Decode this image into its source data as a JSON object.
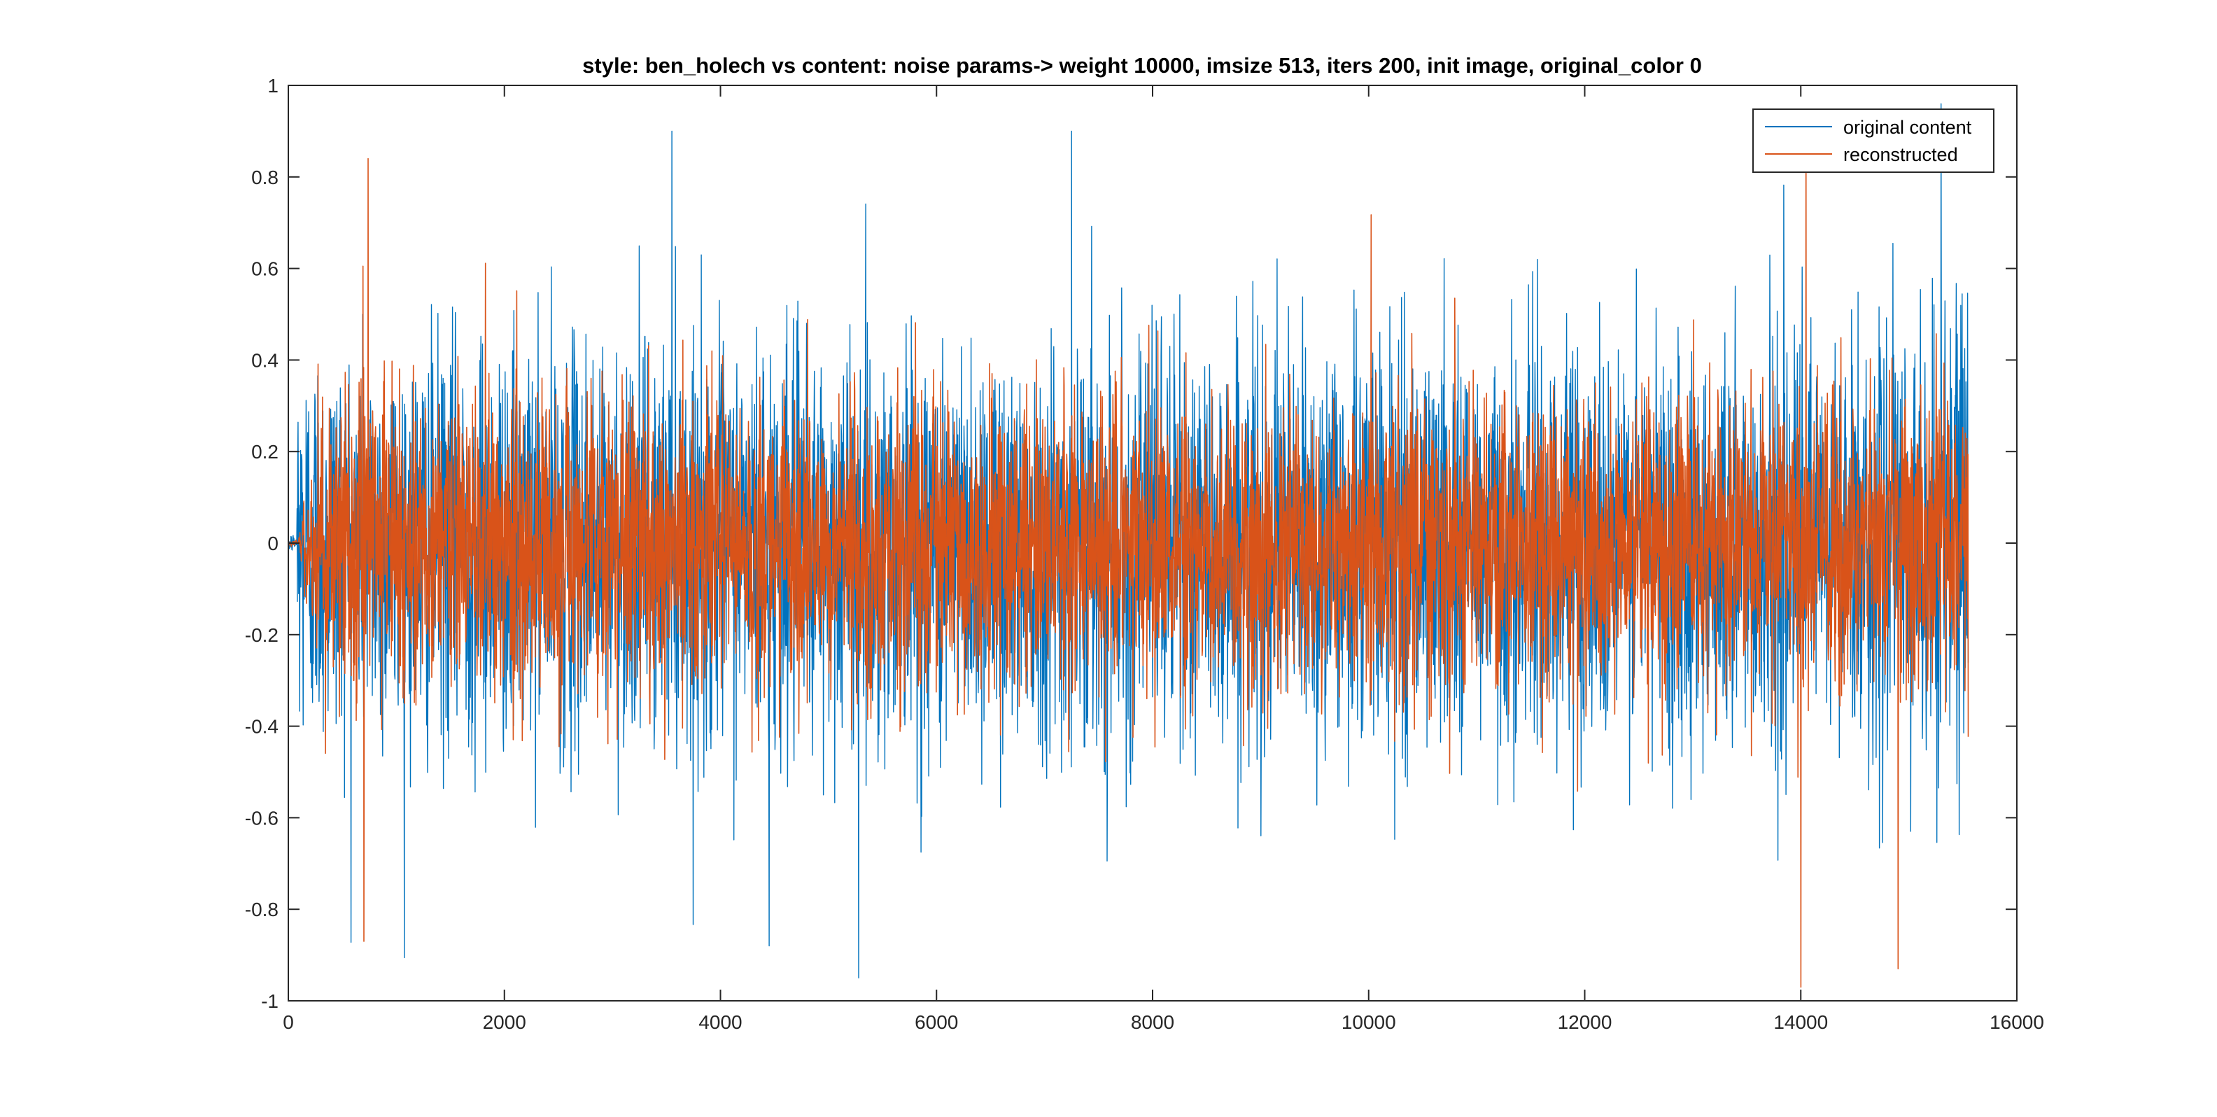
{
  "chart_data": {
    "type": "line",
    "title": "style: ben_holech vs content: noise  params-> weight 10000, imsize 513, iters 200, init image, original_color 0",
    "xlabel": "",
    "ylabel": "",
    "xlim": [
      0,
      16000
    ],
    "ylim": [
      -1,
      1
    ],
    "xticks": [
      0,
      2000,
      4000,
      6000,
      8000,
      10000,
      12000,
      14000,
      16000
    ],
    "xtick_labels": [
      "0",
      "2000",
      "4000",
      "6000",
      "8000",
      "10000",
      "12000",
      "14000",
      "16000"
    ],
    "yticks": [
      -1,
      -0.8,
      -0.6,
      -0.4,
      -0.2,
      0,
      0.2,
      0.4,
      0.6,
      0.8,
      1
    ],
    "ytick_labels": [
      "-1",
      "-0.8",
      "-0.6",
      "-0.4",
      "-0.2",
      "0",
      "0.2",
      "0.4",
      "0.6",
      "0.8",
      "1"
    ],
    "grid": false,
    "legend_position": "top-right",
    "x_range_of_data": [
      0,
      15550
    ],
    "series": [
      {
        "name": "original content",
        "color": "#0072BD",
        "signal": "noise",
        "max": 0.96,
        "min": -0.95,
        "typical_envelope": 0.6,
        "peaks": [
          {
            "x": 3550,
            "y": 0.9
          },
          {
            "x": 7250,
            "y": 0.9
          },
          {
            "x": 15300,
            "y": 0.96
          },
          {
            "x": 5280,
            "y": -0.95
          },
          {
            "x": 4450,
            "y": -0.88
          }
        ]
      },
      {
        "name": "reconstructed",
        "color": "#D95319",
        "signal": "noise",
        "max": 0.93,
        "min": -0.97,
        "typical_envelope": 0.45,
        "peaks": [
          {
            "x": 14050,
            "y": 0.93
          },
          {
            "x": 740,
            "y": 0.84
          },
          {
            "x": 14000,
            "y": -0.97
          },
          {
            "x": 14900,
            "y": -0.93
          },
          {
            "x": 700,
            "y": -0.87
          }
        ]
      }
    ]
  }
}
